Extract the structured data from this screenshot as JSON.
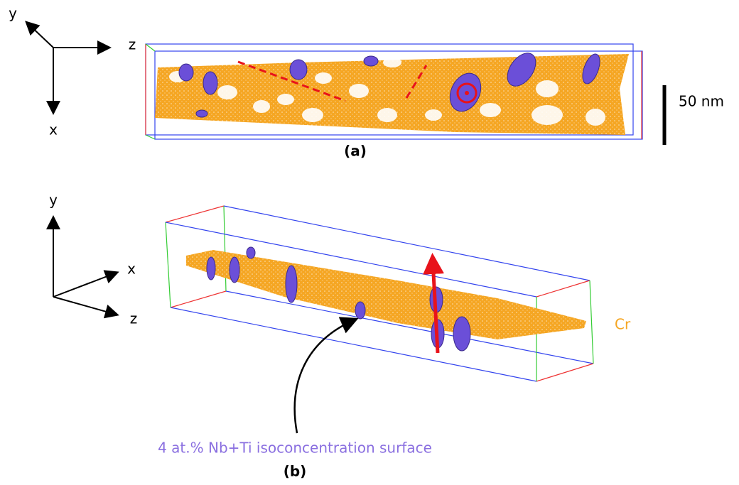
{
  "panel_a": {
    "axes": {
      "y": "y",
      "z": "z",
      "x": "x"
    },
    "scale_bar": "50 nm",
    "label": "(a)"
  },
  "panel_b": {
    "axes": {
      "y": "y",
      "x": "x",
      "z": "z"
    },
    "element": "Cr",
    "annotation": "4 at.% Nb+Ti isoconcentration surface",
    "label": "(b)"
  }
}
